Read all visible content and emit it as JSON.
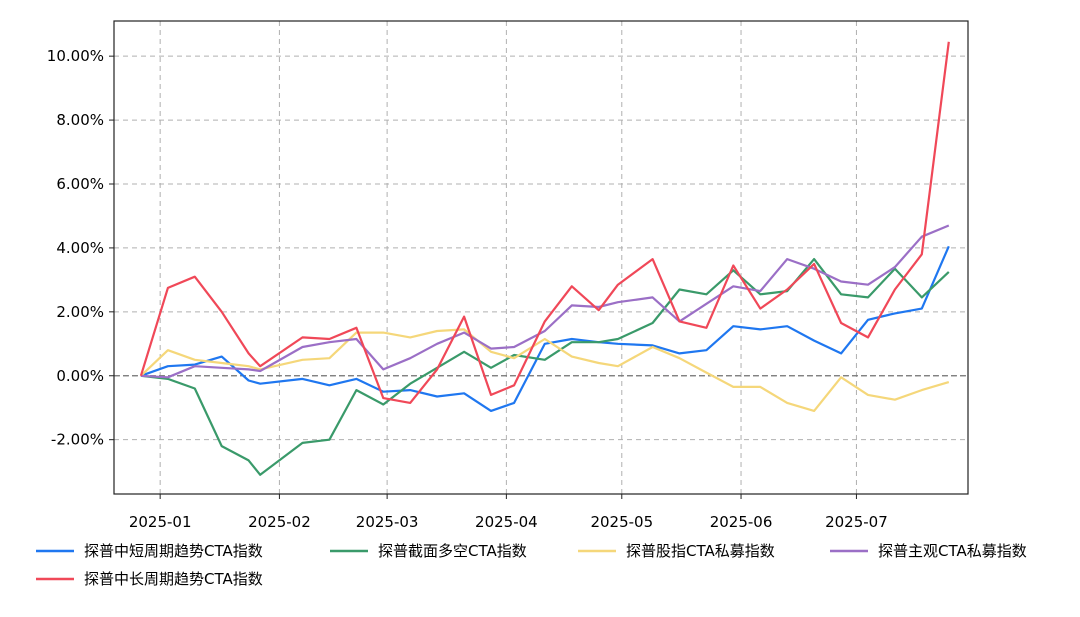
{
  "chart_data": {
    "type": "line",
    "title": "",
    "xlabel": "",
    "ylabel": "",
    "x_ticks": [
      {
        "date": "2025-01-01",
        "label": "2025-01"
      },
      {
        "date": "2025-02-01",
        "label": "2025-02"
      },
      {
        "date": "2025-03-01",
        "label": "2025-03"
      },
      {
        "date": "2025-04-01",
        "label": "2025-04"
      },
      {
        "date": "2025-05-01",
        "label": "2025-05"
      },
      {
        "date": "2025-06-01",
        "label": "2025-06"
      },
      {
        "date": "2025-07-01",
        "label": "2025-07"
      }
    ],
    "y_ticks": [
      -2,
      0,
      2,
      4,
      6,
      8,
      10
    ],
    "y_tick_labels": [
      "-2.00%",
      "0.00%",
      "2.00%",
      "4.00%",
      "6.00%",
      "8.00%",
      "10.00%"
    ],
    "xlim": [
      "2024-12-20",
      "2025-07-30"
    ],
    "ylim": [
      -3.7,
      11.1
    ],
    "grid": true,
    "zero_line": true,
    "legend_position": "bottom",
    "dates": [
      "2024-12-27",
      "2025-01-03",
      "2025-01-10",
      "2025-01-17",
      "2025-01-24",
      "2025-01-27",
      "2025-02-07",
      "2025-02-14",
      "2025-02-21",
      "2025-02-28",
      "2025-03-07",
      "2025-03-14",
      "2025-03-21",
      "2025-03-28",
      "2025-04-03",
      "2025-04-11",
      "2025-04-18",
      "2025-04-25",
      "2025-04-30",
      "2025-05-09",
      "2025-05-16",
      "2025-05-23",
      "2025-05-30",
      "2025-06-06",
      "2025-06-13",
      "2025-06-20",
      "2025-06-27",
      "2025-07-04",
      "2025-07-11",
      "2025-07-18",
      "2025-07-25"
    ],
    "series": [
      {
        "name": "探普中短周期趋势CTA指数",
        "color": "#1f77f0",
        "values": [
          0.0,
          0.3,
          0.35,
          0.6,
          -0.15,
          -0.25,
          -0.1,
          -0.3,
          -0.1,
          -0.5,
          -0.45,
          -0.65,
          -0.55,
          -1.1,
          -0.85,
          1.0,
          1.15,
          1.05,
          1.0,
          0.95,
          0.7,
          0.8,
          1.55,
          1.45,
          1.55,
          1.1,
          0.7,
          1.75,
          1.95,
          2.1,
          4.05
        ]
      },
      {
        "name": "探普截面多空CTA指数",
        "color": "#3a9a6a",
        "values": [
          0.0,
          -0.1,
          -0.4,
          -2.2,
          -2.65,
          -3.1,
          -2.1,
          -2.0,
          -0.45,
          -0.9,
          -0.25,
          0.25,
          0.75,
          0.25,
          0.65,
          0.5,
          1.05,
          1.05,
          1.15,
          1.65,
          2.7,
          2.55,
          3.3,
          2.55,
          2.65,
          3.65,
          2.55,
          2.45,
          3.35,
          2.45,
          3.25
        ]
      },
      {
        "name": "探普股指CTA私募指数",
        "color": "#f5d77a",
        "values": [
          0.0,
          0.8,
          0.5,
          0.4,
          0.3,
          0.2,
          0.5,
          0.55,
          1.35,
          1.35,
          1.2,
          1.4,
          1.45,
          0.75,
          0.55,
          1.15,
          0.6,
          0.4,
          0.3,
          0.9,
          0.55,
          0.1,
          -0.35,
          -0.35,
          -0.85,
          -1.1,
          -0.05,
          -0.6,
          -0.75,
          -0.45,
          -0.2
        ]
      },
      {
        "name": "探普主观CTA私募指数",
        "color": "#9b6fc6",
        "values": [
          0.0,
          -0.05,
          0.3,
          0.25,
          0.2,
          0.15,
          0.9,
          1.05,
          1.15,
          0.2,
          0.55,
          1.0,
          1.35,
          0.85,
          0.9,
          1.4,
          2.2,
          2.15,
          2.3,
          2.45,
          1.7,
          2.25,
          2.8,
          2.65,
          3.65,
          3.35,
          2.95,
          2.85,
          3.4,
          4.35,
          4.7
        ]
      },
      {
        "name": "探普中长周期趋势CTA指数",
        "color": "#f04858",
        "values": [
          0.0,
          2.75,
          3.1,
          2.0,
          0.7,
          0.3,
          1.2,
          1.15,
          1.5,
          -0.7,
          -0.85,
          0.2,
          1.85,
          -0.6,
          -0.3,
          1.7,
          2.8,
          2.05,
          2.85,
          3.65,
          1.7,
          1.5,
          3.45,
          2.1,
          2.7,
          3.5,
          1.65,
          1.2,
          2.7,
          3.8,
          10.45
        ]
      }
    ]
  }
}
